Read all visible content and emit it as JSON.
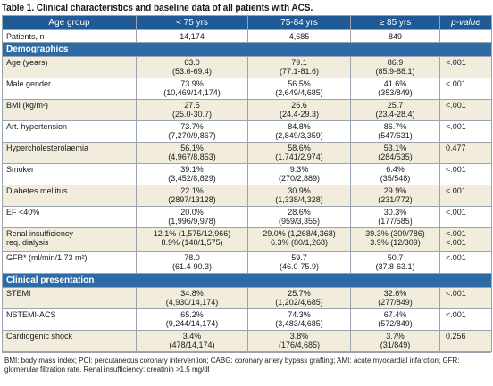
{
  "title": "Table 1. Clinical characteristics and baseline data of all patients with ACS.",
  "header": [
    "Age group",
    "< 75 yrs",
    "75-84 yrs",
    "≥ 85 yrs",
    "p-value"
  ],
  "patients_row": {
    "label": "Patients, n",
    "c1": "14,174",
    "c2": "4,685",
    "c3": "849",
    "p": ""
  },
  "sections": {
    "demographics": "Demographics",
    "clinical": "Clinical presentation"
  },
  "demo_rows": [
    {
      "label": "Age (years)",
      "c1a": "63.0",
      "c1b": "(53.6-69.4)",
      "c2a": "79.1",
      "c2b": "(77.1-81.6)",
      "c3a": "86.9",
      "c3b": "(85.9-88.1)",
      "p": "<.001"
    },
    {
      "label": "Male gender",
      "c1a": "73.9%",
      "c1b": "(10,469/14,174)",
      "c2a": "56.5%",
      "c2b": "(2,649/4,685)",
      "c3a": "41.6%",
      "c3b": "(353/849)",
      "p": "<.001"
    },
    {
      "label": "BMI (kg/m²)",
      "c1a": "27.5",
      "c1b": "(25.0-30.7)",
      "c2a": "26.6",
      "c2b": "(24.4-29.3)",
      "c3a": "25.7",
      "c3b": "(23.4-28.4)",
      "p": "<.001"
    },
    {
      "label": "Art. hypertension",
      "c1a": "73.7%",
      "c1b": "(7,270/9,867)",
      "c2a": "84.8%",
      "c2b": "(2,849/3,359)",
      "c3a": "86.7%",
      "c3b": "(547/631)",
      "p": "<.001"
    },
    {
      "label": "Hypercholesterolaemia",
      "c1a": "56.1%",
      "c1b": "(4,967/8,853)",
      "c2a": "58.6%",
      "c2b": "(1,741/2,974)",
      "c3a": "53.1%",
      "c3b": "(284/535)",
      "p": "0.477"
    },
    {
      "label": "Smoker",
      "c1a": "39.1%",
      "c1b": "(3,452/8,829)",
      "c2a": "9.3%",
      "c2b": "(270/2,889)",
      "c3a": "6.4%",
      "c3b": "(35/548)",
      "p": "<.001"
    },
    {
      "label": "Diabetes mellitus",
      "c1a": "22.1%",
      "c1b": "(2897/13128)",
      "c2a": "30.9%",
      "c2b": "(1,338/4,328)",
      "c3a": "29.9%",
      "c3b": "(231/772)",
      "p": "<.001"
    },
    {
      "label": "EF <40%",
      "c1a": "20.0%",
      "c1b": "(1,996/9,978)",
      "c2a": "28.6%",
      "c2b": "(959/3,355)",
      "c3a": "30.3%",
      "c3b": "(177/585)",
      "p": "<.001"
    },
    {
      "label": "Renal insufficiency",
      "label2": "req. dialysis",
      "c1a": "12.1% (1,575/12,966)",
      "c1b": "8.9% (140/1,575)",
      "c2a": "29.0% (1,268/4,368)",
      "c2b": "6.3% (80/1,268)",
      "c3a": "39.3% (309/786)",
      "c3b": "3.9% (12/309)",
      "p": "<.001",
      "p2": "<.001"
    },
    {
      "label": "GFR* (ml/min/1.73 m²)",
      "c1a": "78.0",
      "c1b": "(61.4-90.3)",
      "c2a": "59.7",
      "c2b": "(46.0-75.9)",
      "c3a": "50.7",
      "c3b": "(37.8-63.1)",
      "p": "<.001"
    }
  ],
  "clin_rows": [
    {
      "label": "STEMI",
      "c1a": "34.8%",
      "c1b": "(4,930/14,174)",
      "c2a": "25.7%",
      "c2b": "(1,202/4,685)",
      "c3a": "32.6%",
      "c3b": "(277/849)",
      "p": "<.001"
    },
    {
      "label": "NSTEMI-ACS",
      "c1a": "65.2%",
      "c1b": "(9,244/14,174)",
      "c2a": "74.3%",
      "c2b": "(3,483/4,685)",
      "c3a": "67.4%",
      "c3b": "(572/849)",
      "p": "<.001"
    },
    {
      "label": "Cardiogenic shock",
      "c1a": "3.4%",
      "c1b": "(478/14,174)",
      "c2a": "3.8%",
      "c2b": "(176/4,685)",
      "c3a": "3.7%",
      "c3b": "(31/849)",
      "p": "0.256"
    }
  ],
  "footnote": "BMI: body mass index; PCI: percutaneous coronary intervention; CABG: coronary artery bypass grafting; AMI: acute myocardial infarction; GFR: glomerular filtration rate. Renal insufficiency: creatinin >1.5 mg/dl"
}
